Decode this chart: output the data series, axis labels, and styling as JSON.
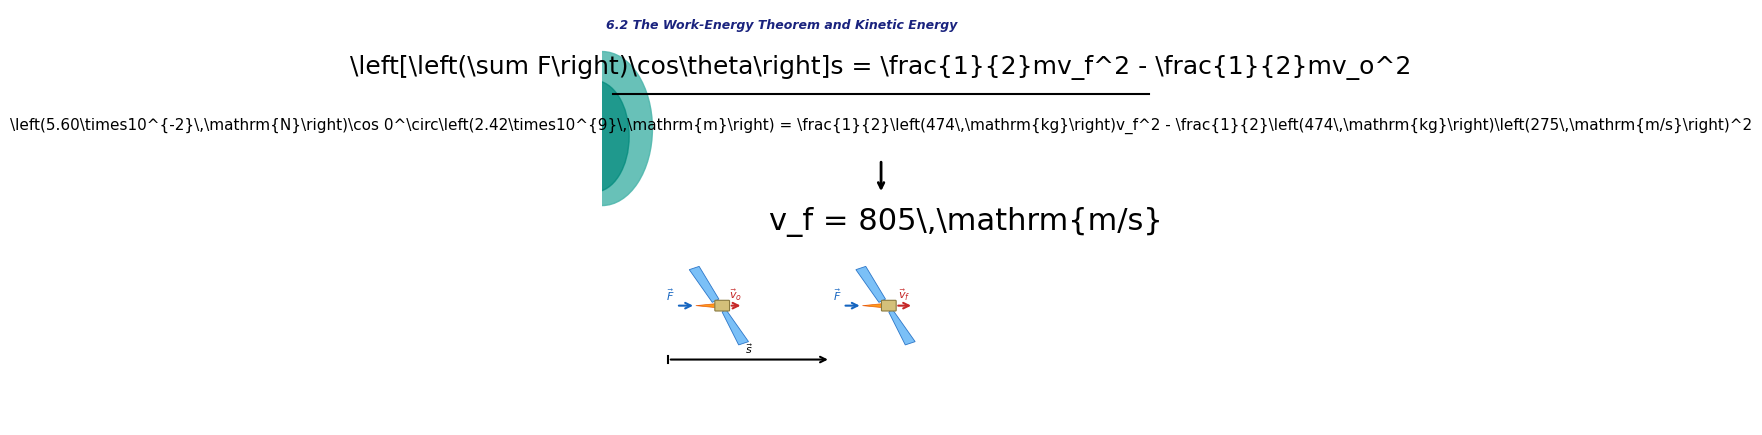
{
  "title": "6.2 The Work-Energy Theorem and Kinetic Energy",
  "title_color": "#1a237e",
  "title_fontsize": 9,
  "bg_color": "#ffffff",
  "teal_circle_color": "#4db6ac",
  "equation1": "\\left[\\left(\\sum F\\right)\\cos\\theta\\right]s = \\frac{1}{2}mv_f^2 - \\frac{1}{2}mv_o^2",
  "equation2": "\\left(5.60\\times10^{-2}\\,\\mathrm{N}\\right)\\cos 0^\\circ\\left(2.42\\times10^{9}\\,\\mathrm{m}\\right) = \\frac{1}{2}\\left(474\\,\\mathrm{kg}\\right)v_f^2 - \\frac{1}{2}\\left(474\\,\\mathrm{kg}\\right)\\left(275\\,\\mathrm{m/s}\\right)^2",
  "equation3": "v_f = 805\\,\\mathrm{m/s}",
  "arrow_color": "#000000",
  "line_color": "#000000",
  "eq1_fontsize": 18,
  "eq2_fontsize": 11,
  "eq3_fontsize": 22
}
